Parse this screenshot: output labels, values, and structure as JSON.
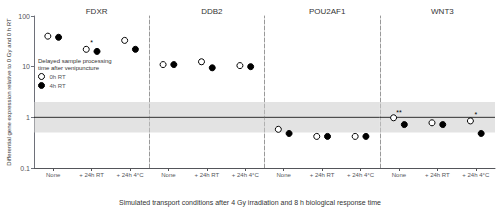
{
  "chart_data": {
    "type": "scatter",
    "xlabel": "Simulated transport conditions after 4 Gy irradiation and 8 h biological response time",
    "ylabel": "Differential gene expression relative to 0 Gy and 0 h RT",
    "categories": [
      "None",
      "+ 24h RT",
      "+ 24h 4°C"
    ],
    "log": "y",
    "ylim": [
      0.1,
      100
    ],
    "yticks": [
      0.1,
      1,
      10,
      100
    ],
    "grid": false,
    "band": [
      0.5,
      2.0
    ],
    "reference_line": 1.0,
    "legend_title": "Delayed sample processing\ntime after venipuncture",
    "panels": [
      {
        "title": "FDXR",
        "series": [
          {
            "name": "0h RT",
            "color": "#000000",
            "marker": "circle_open",
            "values": [
              40,
              22,
              33
            ],
            "yerr": [
              2.5,
              2.0,
              2.5
            ]
          },
          {
            "name": "4h RT",
            "color": "#000000",
            "marker": "circle",
            "values": [
              38,
              20,
              22
            ],
            "yerr": [
              1.5,
              1.5,
              1.5
            ]
          }
        ],
        "annotations": [
          null,
          "*",
          null
        ]
      },
      {
        "title": "DDB2",
        "series": [
          {
            "name": "0h RT",
            "color": "#000000",
            "marker": "circle_open",
            "values": [
              11,
              12.5,
              10.5
            ],
            "yerr": [
              0.5,
              1.2,
              0.8
            ]
          },
          {
            "name": "4h RT",
            "color": "#000000",
            "marker": "circle",
            "values": [
              11,
              9.5,
              10.0
            ],
            "yerr": [
              0.5,
              0.8,
              0.7
            ]
          }
        ],
        "annotations": [
          null,
          null,
          null
        ]
      },
      {
        "title": "POU2AF1",
        "series": [
          {
            "name": "0h RT",
            "color": "#000000",
            "marker": "circle_open",
            "values": [
              0.58,
              0.42,
              0.42
            ],
            "yerr": [
              0.04,
              0.03,
              0.03
            ]
          },
          {
            "name": "4h RT",
            "color": "#000000",
            "marker": "circle",
            "values": [
              0.48,
              0.42,
              0.42
            ],
            "yerr": [
              0.03,
              0.03,
              0.03
            ]
          }
        ],
        "annotations": [
          null,
          null,
          null
        ]
      },
      {
        "title": "WNT3",
        "series": [
          {
            "name": "0h RT",
            "color": "#000000",
            "marker": "circle_open",
            "values": [
              0.98,
              0.78,
              0.85
            ],
            "yerr": [
              0.05,
              0.06,
              0.06
            ]
          },
          {
            "name": "4h RT",
            "color": "#000000",
            "marker": "circle",
            "values": [
              0.72,
              0.72,
              0.48
            ],
            "yerr": [
              0.05,
              0.06,
              0.04
            ]
          }
        ],
        "annotations": [
          "**",
          null,
          "*"
        ]
      }
    ]
  }
}
